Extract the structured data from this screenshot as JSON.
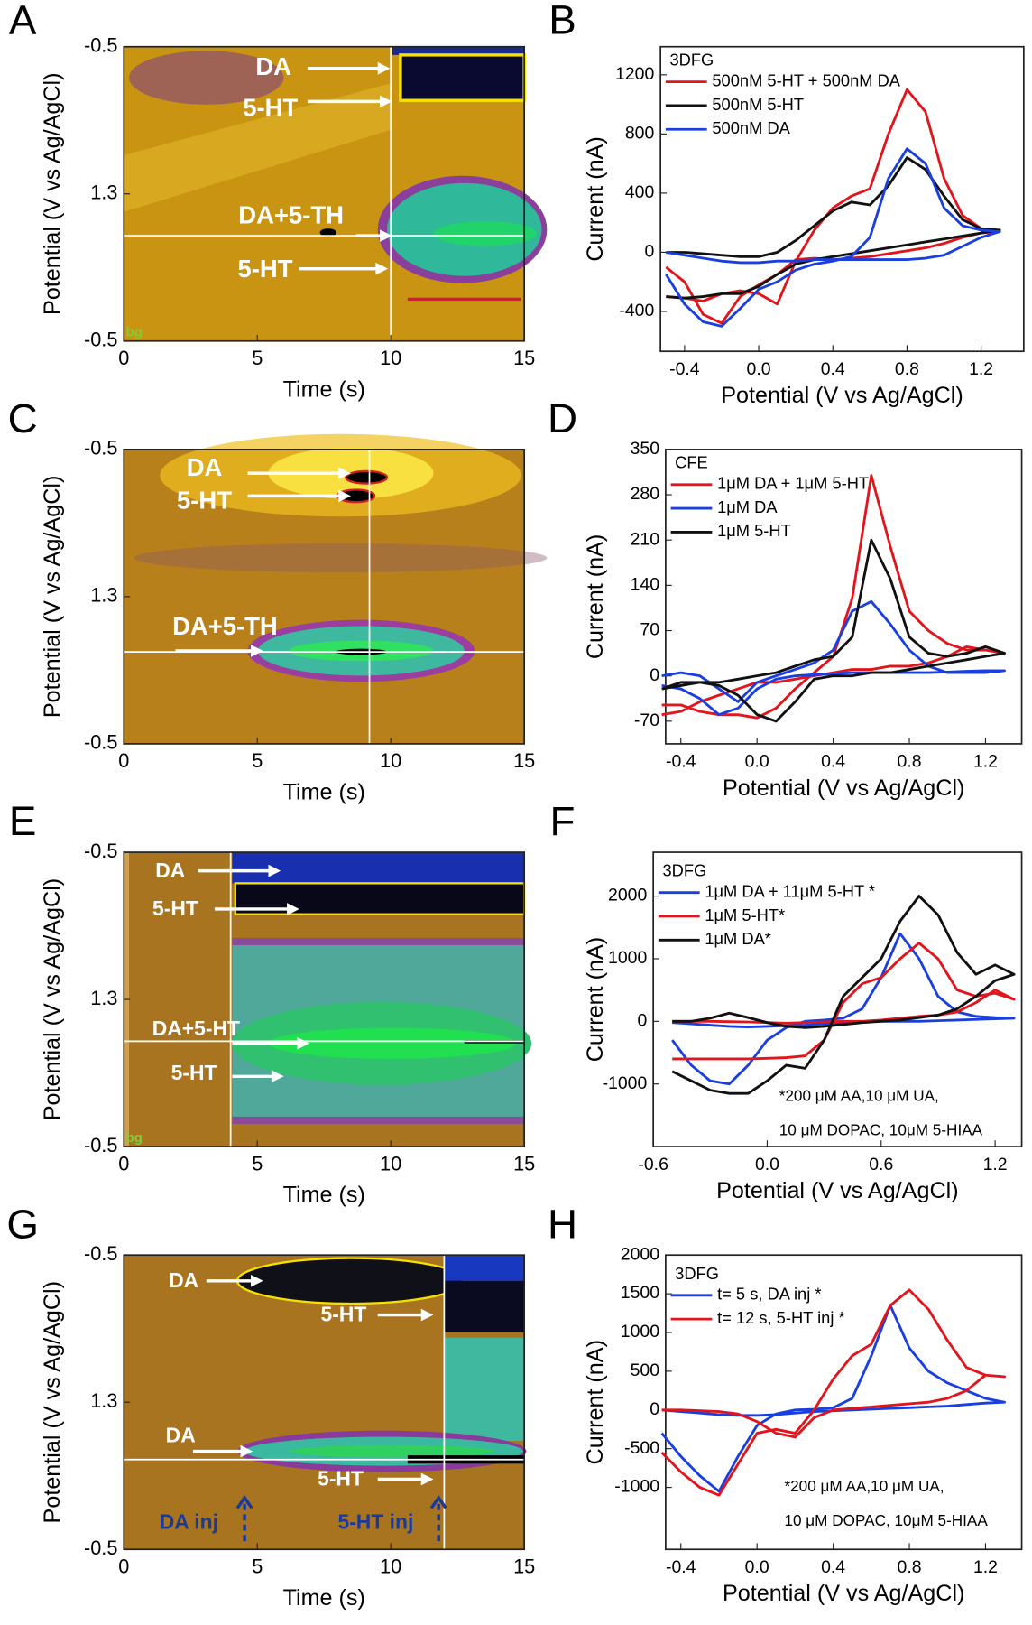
{
  "chart_data": [
    {
      "panel": "A",
      "type": "colorplot",
      "xlabel": "Time (s)",
      "ylabel": "Potential (V vs Ag/AgCl)",
      "xlim": [
        0,
        15
      ],
      "xticks": [
        0,
        5,
        10,
        15
      ],
      "y_categories": [
        "-0.5",
        "1.3",
        "-0.5"
      ],
      "cursor_time": 10,
      "annotations": [
        "DA",
        "5-HT",
        "DA+5-TH",
        "5-HT",
        "bg"
      ]
    },
    {
      "panel": "B",
      "type": "line",
      "box_label": "3DFG",
      "xlabel": "Potential (V vs Ag/AgCl)",
      "ylabel": "Current (nA)",
      "xlim": [
        -0.53,
        1.43
      ],
      "ylim": [
        -670,
        1390
      ],
      "xticks": [
        -0.4,
        {
          "value": 0,
          "label": "0.0"
        },
        0.4,
        0.8,
        1.2
      ],
      "yticks": [
        -400,
        0,
        400,
        800,
        1200
      ],
      "x": [
        -0.5,
        -0.4,
        -0.3,
        -0.2,
        -0.1,
        0,
        0.1,
        0.2,
        0.3,
        0.4,
        0.5,
        0.6,
        0.7,
        0.8,
        0.9,
        1.0,
        1.1,
        1.2,
        1.3,
        1.2,
        1.1,
        1.0,
        0.9,
        0.8,
        0.7,
        0.6,
        0.5,
        0.4,
        0.3,
        0.2,
        0.1,
        0,
        -0.1,
        -0.2,
        -0.3,
        -0.4,
        -0.5
      ],
      "series": [
        {
          "name": "500nM 5-HT + 500nM DA",
          "color": "#e3151c",
          "values": [
            -300,
            -310,
            -330,
            -280,
            -260,
            -280,
            -350,
            -60,
            150,
            300,
            380,
            430,
            800,
            1100,
            950,
            500,
            250,
            160,
            140,
            130,
            100,
            60,
            30,
            10,
            -10,
            -30,
            -40,
            -50,
            -40,
            -50,
            -150,
            -220,
            -300,
            -480,
            -420,
            -200,
            -100
          ]
        },
        {
          "name": "500nM 5-HT",
          "color": "#111111",
          "values": [
            0,
            0,
            -10,
            -20,
            -30,
            -30,
            0,
            80,
            180,
            280,
            340,
            320,
            450,
            640,
            560,
            380,
            220,
            160,
            150,
            130,
            110,
            90,
            70,
            50,
            30,
            10,
            -10,
            -30,
            -50,
            -80,
            -150,
            -230,
            -280,
            -280,
            -300,
            -310,
            -300
          ]
        },
        {
          "name": "500nM DA",
          "color": "#1a3fe0",
          "values": [
            -150,
            -350,
            -470,
            -500,
            -380,
            -250,
            -200,
            -120,
            -80,
            -60,
            -30,
            100,
            500,
            700,
            600,
            300,
            180,
            150,
            140,
            100,
            40,
            -20,
            -40,
            -50,
            -50,
            -50,
            -50,
            -50,
            -50,
            -60,
            -60,
            -70,
            -70,
            -60,
            -40,
            -20,
            0
          ]
        }
      ]
    },
    {
      "panel": "C",
      "type": "colorplot",
      "xlabel": "Time (s)",
      "ylabel": "Potential (V vs Ag/AgCl)",
      "xlim": [
        0,
        15
      ],
      "xticks": [
        0,
        5,
        10,
        15
      ],
      "y_categories": [
        "-0.5",
        "1.3",
        "-0.5"
      ],
      "cursor_time": 9.2,
      "annotations": [
        "DA",
        "5-HT",
        "DA+5-TH"
      ]
    },
    {
      "panel": "D",
      "type": "line",
      "box_label": "CFE",
      "xlabel": "Potential (V vs Ag/AgCl)",
      "ylabel": "Current (nA)",
      "xlim": [
        -0.48,
        1.39
      ],
      "ylim": [
        -105,
        350
      ],
      "xticks": [
        -0.4,
        {
          "value": 0,
          "label": "0.0"
        },
        0.4,
        0.8,
        1.2
      ],
      "yticks": [
        -70,
        0,
        70,
        140,
        210,
        280,
        350
      ],
      "x": [
        -0.5,
        -0.4,
        -0.3,
        -0.2,
        -0.1,
        0,
        0.1,
        0.2,
        0.3,
        0.4,
        0.5,
        0.6,
        0.7,
        0.8,
        0.9,
        1.0,
        1.1,
        1.2,
        1.3,
        1.2,
        1.1,
        1.0,
        0.9,
        0.8,
        0.7,
        0.6,
        0.5,
        0.4,
        0.3,
        0.2,
        0.1,
        0,
        -0.1,
        -0.2,
        -0.3,
        -0.4,
        -0.5
      ],
      "series": [
        {
          "name": "1μM DA + 1μM 5-HT",
          "color": "#e3151c",
          "values": [
            -45,
            -45,
            -55,
            -60,
            -60,
            -65,
            -50,
            -20,
            5,
            30,
            120,
            310,
            200,
            100,
            70,
            50,
            40,
            40,
            35,
            40,
            45,
            30,
            20,
            15,
            15,
            10,
            10,
            5,
            0,
            -5,
            -10,
            -10,
            -20,
            -30,
            -40,
            -55,
            -60
          ]
        },
        {
          "name": "1μM DA",
          "color": "#1a3fe0",
          "values": [
            0,
            5,
            0,
            -20,
            -40,
            -10,
            0,
            10,
            20,
            40,
            100,
            115,
            80,
            40,
            15,
            5,
            5,
            5,
            8,
            8,
            7,
            6,
            5,
            5,
            5,
            5,
            5,
            3,
            2,
            0,
            -5,
            -20,
            -50,
            -60,
            -35,
            -20,
            -15
          ]
        },
        {
          "name": "1μM 5-HT",
          "color": "#111111",
          "values": [
            -20,
            -10,
            -10,
            -10,
            -5,
            0,
            5,
            15,
            25,
            30,
            60,
            210,
            150,
            60,
            35,
            30,
            35,
            45,
            35,
            30,
            25,
            20,
            15,
            10,
            5,
            5,
            0,
            0,
            -5,
            -40,
            -70,
            -60,
            -30,
            -15,
            -10,
            -15,
            -20
          ]
        }
      ]
    },
    {
      "panel": "E",
      "type": "colorplot",
      "xlabel": "Time (s)",
      "ylabel": "Potential (V vs Ag/AgCl)",
      "xlim": [
        0,
        15
      ],
      "xticks": [
        0,
        5,
        10,
        15
      ],
      "y_categories": [
        "-0.5",
        "1.3",
        "-0.5"
      ],
      "cursor_time": 4,
      "annotations": [
        "DA",
        "5-HT",
        "DA+5-HT",
        "5-HT",
        "bg"
      ]
    },
    {
      "panel": "F",
      "type": "line",
      "box_label": "3DFG",
      "xlabel": "Potential (V vs Ag/AgCl)",
      "ylabel": "Current (nA)",
      "xlim": [
        -0.6,
        1.34
      ],
      "ylim": [
        -2000,
        2700
      ],
      "xticks": [
        -0.6,
        {
          "value": 0,
          "label": "0.0"
        },
        0.6,
        1.2
      ],
      "yticks": [
        -1000,
        0,
        1000,
        2000
      ],
      "x": [
        -0.5,
        -0.4,
        -0.3,
        -0.2,
        -0.1,
        0,
        0.1,
        0.2,
        0.3,
        0.4,
        0.5,
        0.6,
        0.7,
        0.8,
        0.9,
        1.0,
        1.1,
        1.2,
        1.3,
        1.2,
        1.1,
        1.0,
        0.9,
        0.8,
        0.7,
        0.6,
        0.5,
        0.4,
        0.3,
        0.2,
        0.1,
        0,
        -0.1,
        -0.2,
        -0.3,
        -0.4,
        -0.5
      ],
      "series": [
        {
          "name": "1μM DA + 11μM 5-HT *",
          "color": "#1a3fe0",
          "values": [
            -300,
            -700,
            -950,
            -1000,
            -700,
            -300,
            -100,
            0,
            20,
            50,
            200,
            700,
            1400,
            1000,
            400,
            150,
            80,
            60,
            50,
            40,
            30,
            20,
            10,
            0,
            0,
            0,
            -10,
            -20,
            -40,
            -60,
            -70,
            -80,
            -90,
            -80,
            -60,
            -40,
            -20
          ]
        },
        {
          "name": "1μM 5-HT*",
          "color": "#e3151c",
          "values": [
            -600,
            -600,
            -600,
            -600,
            -600,
            -590,
            -580,
            -550,
            -300,
            300,
            600,
            700,
            1000,
            1250,
            1000,
            500,
            400,
            450,
            350,
            500,
            300,
            150,
            100,
            80,
            50,
            20,
            0,
            0,
            -10,
            -20,
            -30,
            -20,
            -10,
            -5,
            0,
            0,
            0
          ]
        },
        {
          "name": "1μM DA*",
          "color": "#111111",
          "values": [
            -800,
            -950,
            -1100,
            -1150,
            -1150,
            -950,
            -700,
            -750,
            -300,
            400,
            700,
            1000,
            1600,
            2000,
            1700,
            1100,
            750,
            900,
            750,
            650,
            400,
            200,
            100,
            60,
            20,
            0,
            -20,
            -50,
            -80,
            -100,
            -80,
            -20,
            60,
            130,
            50,
            0,
            0
          ]
        }
      ],
      "notes": [
        "*200 μM AA,10 μM UA,",
        "10 μM DOPAC, 10μM 5-HIAA"
      ]
    },
    {
      "panel": "G",
      "type": "colorplot",
      "xlabel": "Time (s)",
      "ylabel": "Potential (V vs Ag/AgCl)",
      "xlim": [
        0,
        15
      ],
      "xticks": [
        0,
        5,
        10,
        15
      ],
      "y_categories": [
        "-0.5",
        "1.3",
        "-0.5"
      ],
      "cursor_time": 12,
      "annotations": [
        "DA",
        "5-HT",
        "DA",
        "5-HT",
        "DA inj",
        "5-HT inj"
      ]
    },
    {
      "panel": "H",
      "type": "line",
      "box_label": "3DFG",
      "xlabel": "Potential (V vs Ag/AgCl)",
      "ylabel": "Current (nA)",
      "xlim": [
        -0.48,
        1.39
      ],
      "ylim": [
        -1800,
        2000
      ],
      "xticks": [
        -0.4,
        {
          "value": 0,
          "label": "0.0"
        },
        0.4,
        0.8,
        1.2
      ],
      "yticks": [
        -1000,
        -500,
        0,
        500,
        1000,
        1500,
        2000
      ],
      "x": [
        -0.5,
        -0.4,
        -0.3,
        -0.2,
        -0.1,
        0,
        0.1,
        0.2,
        0.3,
        0.4,
        0.5,
        0.6,
        0.7,
        0.8,
        0.9,
        1.0,
        1.1,
        1.2,
        1.3,
        1.2,
        1.1,
        1.0,
        0.9,
        0.8,
        0.7,
        0.6,
        0.5,
        0.4,
        0.3,
        0.2,
        0.1,
        0,
        -0.1,
        -0.2,
        -0.3,
        -0.4,
        -0.5
      ],
      "series": [
        {
          "name": "t= 5 s, DA inj *",
          "color": "#1a3fe0",
          "values": [
            -300,
            -600,
            -850,
            -1050,
            -600,
            -200,
            -50,
            0,
            10,
            30,
            150,
            700,
            1350,
            800,
            500,
            350,
            250,
            150,
            100,
            90,
            70,
            50,
            40,
            30,
            20,
            10,
            0,
            -10,
            -20,
            -40,
            -60,
            -70,
            -70,
            -60,
            -40,
            -20,
            0
          ]
        },
        {
          "name": "t= 12 s, 5-HT inj *",
          "color": "#e3151c",
          "values": [
            -550,
            -800,
            -1000,
            -1100,
            -700,
            -300,
            -250,
            -300,
            0,
            400,
            700,
            850,
            1350,
            1550,
            1300,
            900,
            550,
            450,
            430,
            450,
            250,
            150,
            100,
            80,
            60,
            40,
            20,
            0,
            -100,
            -350,
            -300,
            -150,
            -50,
            -20,
            -10,
            0,
            0
          ]
        }
      ],
      "notes": [
        "*200 μM AA,10 μM UA,",
        "10 μM DOPAC, 10μM 5-HIAA"
      ]
    }
  ]
}
